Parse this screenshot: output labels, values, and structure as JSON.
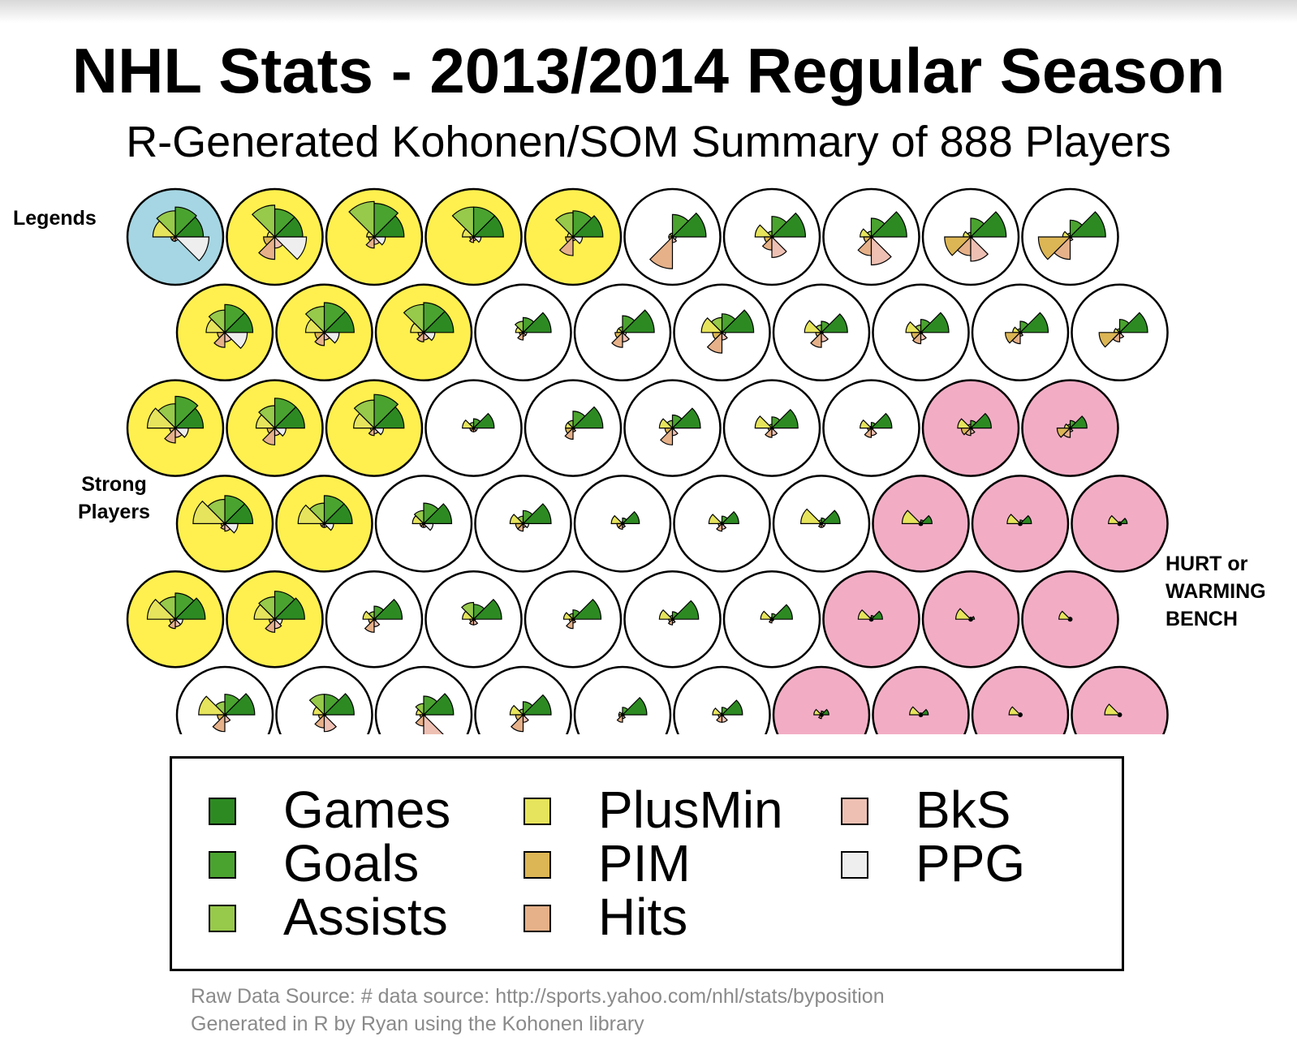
{
  "title": "NHL Stats - 2013/2014 Regular Season",
  "subtitle": "R-Generated Kohonen/SOM Summary of 888 Players",
  "annotations": {
    "legends": "Legends",
    "strong_line1": "Strong",
    "strong_line2": "Players",
    "hurt_line1": "HURT or",
    "hurt_line2": "WARMING",
    "hurt_line3": "BENCH"
  },
  "footer": {
    "line1": "Raw Data Source: # data source: http://sports.yahoo.com/nhl/stats/byposition",
    "line2": "Generated in R by Ryan using the Kohonen library"
  },
  "cluster_colors": {
    "legends": "#a6d6e3",
    "strong": "#fff04f",
    "regular": "#ffffff",
    "hurt": "#f2adc5"
  },
  "chart_data": {
    "type": "som-segment-grid",
    "grid": {
      "columns": 10,
      "rows": 6,
      "topology": "hexagonal"
    },
    "variables": [
      {
        "name": "Games",
        "color": "#2d8a22"
      },
      {
        "name": "Goals",
        "color": "#4aa32f"
      },
      {
        "name": "Assists",
        "color": "#97c94a"
      },
      {
        "name": "PlusMin",
        "color": "#e6e45c"
      },
      {
        "name": "PIM",
        "color": "#dcb555"
      },
      {
        "name": "Hits",
        "color": "#e6b189"
      },
      {
        "name": "BkS",
        "color": "#eec0b3"
      },
      {
        "name": "PPG",
        "color": "#eeeeee"
      }
    ],
    "rows": [
      {
        "clusters": [
          "legends",
          "strong",
          "strong",
          "strong",
          "strong",
          "regular",
          "regular",
          "regular",
          "regular",
          "regular"
        ],
        "codes": [
          [
            0.75,
            0.8,
            0.7,
            0.6,
            0.12,
            0.12,
            0.1,
            0.9
          ],
          [
            0.75,
            0.75,
            0.85,
            0.2,
            0.3,
            0.6,
            0.3,
            0.85
          ],
          [
            0.8,
            0.9,
            0.95,
            0.2,
            0.15,
            0.3,
            0.2,
            0.3
          ],
          [
            0.8,
            0.8,
            0.8,
            0.3,
            0.1,
            0.15,
            0.1,
            0.2
          ],
          [
            0.8,
            0.7,
            0.65,
            0.15,
            0.2,
            0.5,
            0.1,
            0.25
          ],
          [
            0.9,
            0.6,
            0.1,
            0.1,
            0.1,
            0.85,
            0.15,
            0.1
          ],
          [
            0.9,
            0.55,
            0.15,
            0.45,
            0.2,
            0.35,
            0.55,
            0.05
          ],
          [
            0.95,
            0.5,
            0.15,
            0.3,
            0.2,
            0.5,
            0.75,
            0.05
          ],
          [
            0.95,
            0.5,
            0.12,
            0.2,
            0.7,
            0.5,
            0.65,
            0.05
          ],
          [
            0.95,
            0.45,
            0.1,
            0.2,
            0.85,
            0.6,
            0.1,
            0.05
          ]
        ]
      },
      {
        "clusters": [
          "strong",
          "strong",
          "strong",
          "regular",
          "regular",
          "regular",
          "regular",
          "regular",
          "regular",
          "regular"
        ],
        "codes": [
          [
            0.75,
            0.75,
            0.6,
            0.5,
            0.2,
            0.4,
            0.25,
            0.6
          ],
          [
            0.8,
            0.8,
            0.7,
            0.5,
            0.25,
            0.35,
            0.2,
            0.4
          ],
          [
            0.8,
            0.8,
            0.75,
            0.35,
            0.15,
            0.25,
            0.2,
            0.3
          ],
          [
            0.75,
            0.4,
            0.3,
            0.2,
            0.1,
            0.2,
            0.1,
            0.1
          ],
          [
            0.85,
            0.45,
            0.15,
            0.15,
            0.2,
            0.4,
            0.25,
            0.1
          ],
          [
            0.85,
            0.5,
            0.4,
            0.55,
            0.25,
            0.55,
            0.2,
            0.1
          ],
          [
            0.7,
            0.3,
            0.2,
            0.45,
            0.15,
            0.4,
            0.25,
            0.05
          ],
          [
            0.75,
            0.35,
            0.2,
            0.4,
            0.25,
            0.3,
            0.2,
            0.05
          ],
          [
            0.75,
            0.3,
            0.1,
            0.2,
            0.4,
            0.3,
            0.1,
            0.05
          ],
          [
            0.75,
            0.35,
            0.1,
            0.15,
            0.55,
            0.25,
            0.15,
            0.05
          ]
        ]
      },
      {
        "clusters": [
          "strong",
          "strong",
          "strong",
          "regular",
          "regular",
          "regular",
          "regular",
          "regular",
          "hurt",
          "hurt"
        ],
        "codes": [
          [
            0.75,
            0.85,
            0.65,
            0.75,
            0.15,
            0.4,
            0.25,
            0.35
          ],
          [
            0.8,
            0.8,
            0.6,
            0.5,
            0.2,
            0.45,
            0.2,
            0.3
          ],
          [
            0.8,
            0.9,
            0.75,
            0.55,
            0.1,
            0.2,
            0.15,
            0.25
          ],
          [
            0.55,
            0.25,
            0.15,
            0.3,
            0.1,
            0.1,
            0.1,
            0.1
          ],
          [
            0.8,
            0.45,
            0.2,
            0.2,
            0.2,
            0.3,
            0.1,
            0.05
          ],
          [
            0.75,
            0.35,
            0.2,
            0.35,
            0.2,
            0.45,
            0.2,
            0.05
          ],
          [
            0.7,
            0.3,
            0.1,
            0.45,
            0.1,
            0.25,
            0.2,
            0.05
          ],
          [
            0.55,
            0.15,
            0.05,
            0.3,
            0.1,
            0.25,
            0.2,
            0.05
          ],
          [
            0.55,
            0.2,
            0.1,
            0.35,
            0.25,
            0.2,
            0.15,
            0.05
          ],
          [
            0.45,
            0.2,
            0.1,
            0.15,
            0.35,
            0.25,
            0.1,
            0.05
          ]
        ]
      },
      {
        "clusters": [
          "strong",
          "strong",
          "regular",
          "regular",
          "regular",
          "regular",
          "regular",
          "hurt",
          "hurt",
          "hurt"
        ],
        "codes": [
          [
            0.75,
            0.75,
            0.65,
            0.85,
            0.1,
            0.15,
            0.2,
            0.35
          ],
          [
            0.75,
            0.75,
            0.55,
            0.7,
            0.1,
            0.1,
            0.1,
            0.25
          ],
          [
            0.75,
            0.55,
            0.35,
            0.3,
            0.1,
            0.1,
            0.1,
            0.25
          ],
          [
            0.75,
            0.35,
            0.2,
            0.35,
            0.2,
            0.2,
            0.1,
            0.15
          ],
          [
            0.45,
            0.15,
            0.05,
            0.3,
            0.15,
            0.15,
            0.1,
            0.05
          ],
          [
            0.45,
            0.2,
            0.05,
            0.35,
            0.1,
            0.2,
            0.15,
            0.05
          ],
          [
            0.5,
            0.15,
            0.1,
            0.55,
            0.05,
            0.1,
            0.1,
            0.1
          ],
          [
            0.3,
            0.1,
            0.05,
            0.5,
            0.05,
            0.05,
            0.05,
            0.05
          ],
          [
            0.3,
            0.1,
            0.05,
            0.35,
            0.05,
            0.05,
            0.05,
            0.05
          ],
          [
            0.2,
            0.05,
            0.05,
            0.3,
            0.05,
            0.05,
            0.05,
            0.05
          ]
        ]
      },
      {
        "clusters": [
          "strong",
          "strong",
          "regular",
          "regular",
          "regular",
          "regular",
          "regular",
          "hurt",
          "hurt",
          "hurt"
        ],
        "codes": [
          [
            0.8,
            0.7,
            0.6,
            0.75,
            0.15,
            0.25,
            0.2,
            0.2
          ],
          [
            0.8,
            0.75,
            0.6,
            0.55,
            0.15,
            0.35,
            0.25,
            0.2
          ],
          [
            0.75,
            0.35,
            0.2,
            0.3,
            0.15,
            0.35,
            0.2,
            0.05
          ],
          [
            0.75,
            0.4,
            0.45,
            0.3,
            0.1,
            0.15,
            0.15,
            0.05
          ],
          [
            0.75,
            0.25,
            0.15,
            0.25,
            0.1,
            0.25,
            0.1,
            0.05
          ],
          [
            0.7,
            0.2,
            0.1,
            0.35,
            0.1,
            0.15,
            0.1,
            0.05
          ],
          [
            0.55,
            0.15,
            0.05,
            0.3,
            0.05,
            0.1,
            0.05,
            0.05
          ],
          [
            0.3,
            0.1,
            0.05,
            0.35,
            0.05,
            0.05,
            0.05,
            0.05
          ],
          [
            0.1,
            0.05,
            0.05,
            0.4,
            0.05,
            0.05,
            0.05,
            0.05
          ],
          [
            0.05,
            0.05,
            0.05,
            0.3,
            0.05,
            0.05,
            0.05,
            0.05
          ]
        ]
      },
      {
        "clusters": [
          "regular",
          "regular",
          "regular",
          "regular",
          "regular",
          "regular",
          "hurt",
          "hurt",
          "hurt",
          "hurt"
        ],
        "codes": [
          [
            0.8,
            0.55,
            0.35,
            0.7,
            0.2,
            0.45,
            0.2,
            0.05
          ],
          [
            0.8,
            0.55,
            0.55,
            0.3,
            0.15,
            0.35,
            0.45,
            0.05
          ],
          [
            0.8,
            0.5,
            0.3,
            0.2,
            0.1,
            0.3,
            0.85,
            0.05
          ],
          [
            0.75,
            0.35,
            0.15,
            0.35,
            0.2,
            0.45,
            0.2,
            0.05
          ],
          [
            0.65,
            0.2,
            0.05,
            0.1,
            0.1,
            0.2,
            0.1,
            0.05
          ],
          [
            0.55,
            0.2,
            0.05,
            0.25,
            0.1,
            0.2,
            0.2,
            0.05
          ],
          [
            0.2,
            0.1,
            0.05,
            0.2,
            0.05,
            0.1,
            0.05,
            0.05
          ],
          [
            0.2,
            0.05,
            0.05,
            0.3,
            0.05,
            0.05,
            0.05,
            0.05
          ],
          [
            0.05,
            0.05,
            0.05,
            0.3,
            0.05,
            0.05,
            0.05,
            0.05
          ],
          [
            0.05,
            0.05,
            0.05,
            0.4,
            0.05,
            0.05,
            0.05,
            0.05
          ]
        ]
      }
    ]
  }
}
